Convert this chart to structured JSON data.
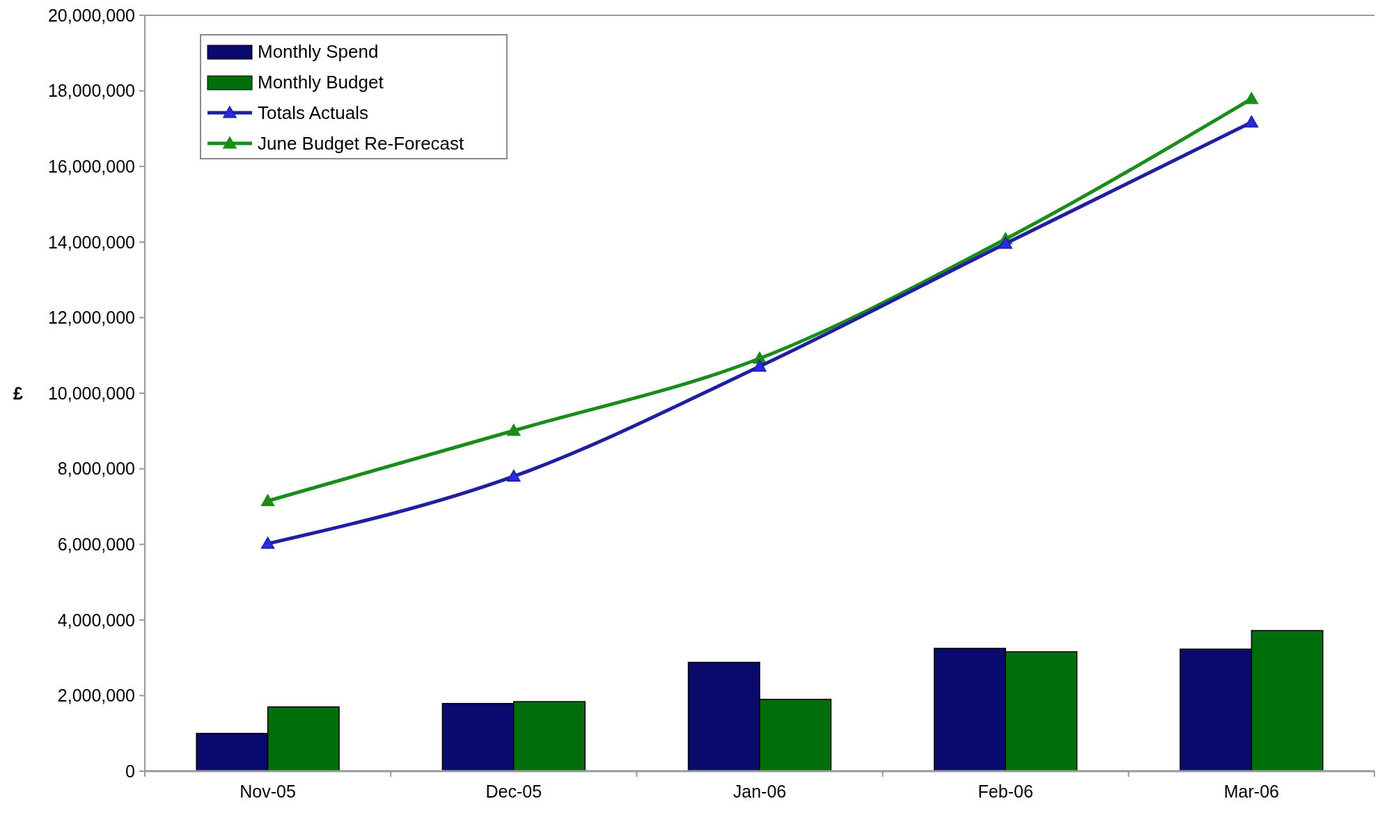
{
  "chart_data": {
    "type": "bar",
    "ylabel": "£",
    "categories": [
      "Nov-05",
      "Dec-05",
      "Jan-06",
      "Feb-06",
      "Mar-06"
    ],
    "series": [
      {
        "name": "Monthly Spend",
        "color": "#0a0a6e",
        "values": [
          1000000,
          1790000,
          2880000,
          3250000,
          3230000
        ]
      },
      {
        "name": "Monthly Budget",
        "color": "#006e0a",
        "values": [
          1700000,
          1840000,
          1900000,
          3160000,
          3720000
        ]
      },
      {
        "name": "Totals Actuals",
        "type": "line",
        "color": "#1f1f9f",
        "values": [
          6020000,
          7800000,
          10710000,
          13960000,
          17170000
        ]
      },
      {
        "name": "June Budget Re-Forecast",
        "type": "line",
        "color": "#1a8c1a",
        "values": [
          7150000,
          9010000,
          10920000,
          14080000,
          17790000
        ]
      }
    ],
    "ylim": [
      0,
      20000000
    ],
    "yticks": [
      0,
      {
        "value": 2000000,
        "label": "2,000,000"
      },
      {
        "value": 4000000,
        "label": "4,000,000"
      },
      {
        "value": 6000000,
        "label": "6,000,000"
      },
      {
        "value": 8000000,
        "label": "8,000,000"
      },
      {
        "value": 10000000,
        "label": "10,000,000"
      },
      {
        "value": 12000000,
        "label": "12,000,000"
      },
      {
        "value": 14000000,
        "label": "14,000,000"
      },
      {
        "value": 16000000,
        "label": "16,000,000"
      },
      {
        "value": 18000000,
        "label": "18,000,000"
      },
      {
        "value": 20000000,
        "label": "20,000,000"
      }
    ],
    "legend": "top left",
    "marker": "triangle",
    "line_style": "solid"
  }
}
